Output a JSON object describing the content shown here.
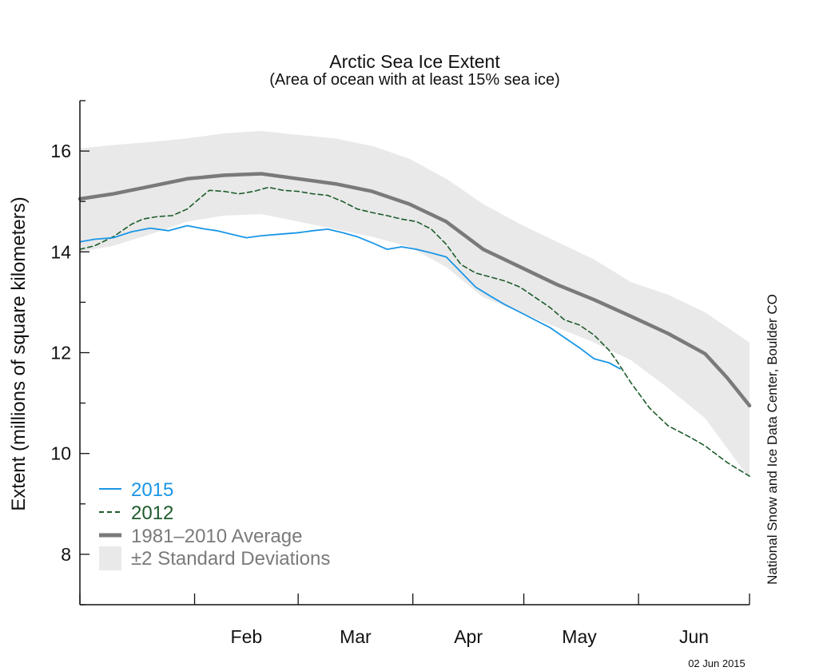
{
  "chart_data": {
    "type": "line",
    "title": "Arctic Sea Ice Extent",
    "subtitle": "(Area of ocean with at least 15% sea ice)",
    "xlabel": "",
    "ylabel": "Extent (millions of square kilometers)",
    "ylim": [
      7,
      17
    ],
    "y_ticks": [
      8,
      10,
      12,
      14,
      16
    ],
    "xlim": [
      1,
      182
    ],
    "month_ticks": [
      1,
      32,
      60,
      91,
      121,
      152,
      182
    ],
    "month_labels": [
      {
        "label": "Feb",
        "day": 46
      },
      {
        "label": "Mar",
        "day": 75.5
      },
      {
        "label": "Apr",
        "day": 106
      },
      {
        "label": "May",
        "day": 136
      },
      {
        "label": "Jun",
        "day": 167
      }
    ],
    "credit": "National Snow and Ice Data Center, Boulder CO",
    "date_stamp": "02 Jun 2015",
    "series": [
      {
        "name": "2015",
        "style": "solid",
        "color": "#1a96e6",
        "x": [
          1,
          5,
          10,
          15,
          20,
          25,
          30,
          35,
          38,
          42,
          46,
          50,
          55,
          60,
          64,
          68,
          72,
          76,
          80,
          84,
          88,
          92,
          96,
          100,
          104,
          108,
          112,
          116,
          120,
          124,
          128,
          132,
          136,
          140,
          144,
          147
        ],
        "values": [
          14.2,
          14.25,
          14.28,
          14.4,
          14.47,
          14.42,
          14.52,
          14.45,
          14.42,
          14.35,
          14.28,
          14.32,
          14.35,
          14.38,
          14.42,
          14.45,
          14.38,
          14.3,
          14.18,
          14.05,
          14.1,
          14.05,
          13.98,
          13.9,
          13.6,
          13.3,
          13.12,
          12.95,
          12.8,
          12.65,
          12.5,
          12.3,
          12.1,
          11.88,
          11.8,
          11.68
        ]
      },
      {
        "name": "2012",
        "style": "dashed",
        "color": "#1e5c2c",
        "x": [
          1,
          5,
          10,
          15,
          18,
          22,
          26,
          30,
          34,
          36,
          40,
          44,
          48,
          52,
          56,
          60,
          64,
          68,
          72,
          76,
          80,
          84,
          88,
          92,
          96,
          100,
          104,
          108,
          112,
          116,
          120,
          124,
          128,
          132,
          136,
          140,
          144,
          146,
          150,
          155,
          160,
          166,
          170,
          176,
          182
        ],
        "values": [
          14.05,
          14.12,
          14.3,
          14.55,
          14.65,
          14.7,
          14.72,
          14.85,
          15.1,
          15.22,
          15.2,
          15.15,
          15.2,
          15.28,
          15.22,
          15.2,
          15.15,
          15.12,
          15.0,
          14.85,
          14.78,
          14.72,
          14.65,
          14.6,
          14.45,
          14.15,
          13.75,
          13.58,
          13.5,
          13.42,
          13.3,
          13.1,
          12.9,
          12.65,
          12.55,
          12.35,
          12.05,
          11.85,
          11.4,
          10.9,
          10.55,
          10.32,
          10.15,
          9.82,
          9.55
        ]
      },
      {
        "name": "1981–2010 Average",
        "style": "solid",
        "color": "#7a7a7a",
        "x": [
          1,
          10,
          20,
          30,
          40,
          50,
          60,
          70,
          80,
          90,
          100,
          110,
          120,
          130,
          140,
          150,
          160,
          170,
          176,
          182
        ],
        "values": [
          15.05,
          15.15,
          15.3,
          15.45,
          15.52,
          15.55,
          15.45,
          15.35,
          15.2,
          14.95,
          14.6,
          14.05,
          13.7,
          13.35,
          13.05,
          12.72,
          12.38,
          11.98,
          11.5,
          10.95
        ]
      }
    ],
    "band": {
      "name": "±2 Standard Deviations",
      "color": "#e9e9e9",
      "x": [
        1,
        10,
        20,
        30,
        40,
        50,
        60,
        70,
        80,
        90,
        100,
        110,
        120,
        130,
        140,
        150,
        160,
        170,
        176,
        182
      ],
      "upper": [
        16.05,
        16.12,
        16.18,
        16.25,
        16.35,
        16.4,
        16.32,
        16.25,
        16.1,
        15.85,
        15.45,
        14.95,
        14.55,
        14.2,
        13.85,
        13.4,
        13.15,
        12.8,
        12.5,
        12.2
      ],
      "lower": [
        14.0,
        14.12,
        14.35,
        14.6,
        14.72,
        14.75,
        14.6,
        14.45,
        14.3,
        14.1,
        13.7,
        13.1,
        12.8,
        12.5,
        12.2,
        11.85,
        11.3,
        10.7,
        10.1,
        9.5
      ]
    }
  }
}
